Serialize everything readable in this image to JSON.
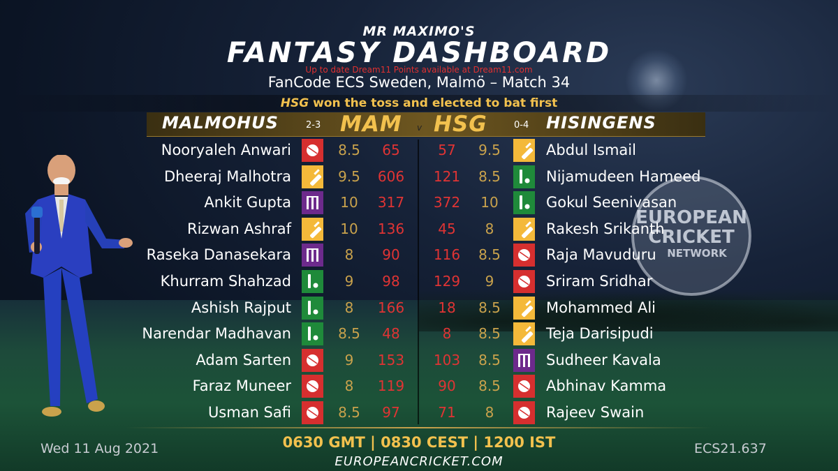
{
  "header": {
    "brand": "MR MAXIMO'S",
    "title": "FANTASY DASHBOARD",
    "note": "Up to date Dream11 Points available at Dream11.com",
    "match": "FanCode ECS Sweden, Malmö – Match 34",
    "toss_team": "HSG",
    "toss_text": " won the toss and elected to bat first"
  },
  "home": {
    "name": "MALMOHUS",
    "record": "2-3",
    "abbr": "MAM"
  },
  "away": {
    "name": "HISINGENS",
    "record": "0-4",
    "abbr": "HSG"
  },
  "vs": "v",
  "role_colors": {
    "bat": "#f4b93a",
    "bowl": "#d62f2f",
    "allrounder": "#1f8a3a",
    "keeper": "#6d2a8c"
  },
  "home_players": [
    {
      "name": "Nooryaleh Anwari",
      "role": "bowl",
      "credits": "8.5",
      "points": "65"
    },
    {
      "name": "Dheeraj Malhotra",
      "role": "bat",
      "credits": "9.5",
      "points": "606"
    },
    {
      "name": "Ankit Gupta",
      "role": "keeper",
      "credits": "10",
      "points": "317"
    },
    {
      "name": "Rizwan Ashraf",
      "role": "bat",
      "credits": "10",
      "points": "136"
    },
    {
      "name": "Raseka Danasekara",
      "role": "keeper",
      "credits": "8",
      "points": "90"
    },
    {
      "name": "Khurram Shahzad",
      "role": "allrounder",
      "credits": "9",
      "points": "98"
    },
    {
      "name": "Ashish Rajput",
      "role": "allrounder",
      "credits": "8",
      "points": "166"
    },
    {
      "name": "Narendar Madhavan",
      "role": "allrounder",
      "credits": "8.5",
      "points": "48"
    },
    {
      "name": "Adam Sarten",
      "role": "bowl",
      "credits": "9",
      "points": "153"
    },
    {
      "name": "Faraz Muneer",
      "role": "bowl",
      "credits": "8",
      "points": "119"
    },
    {
      "name": "Usman Safi",
      "role": "bowl",
      "credits": "8.5",
      "points": "97"
    }
  ],
  "away_players": [
    {
      "name": "Abdul Ismail",
      "role": "bat",
      "credits": "9.5",
      "points": "57"
    },
    {
      "name": "Nijamudeen Hameed",
      "role": "allrounder",
      "credits": "8.5",
      "points": "121"
    },
    {
      "name": "Gokul Seenivasan",
      "role": "allrounder",
      "credits": "10",
      "points": "372"
    },
    {
      "name": "Rakesh Srikanth",
      "role": "bat",
      "credits": "8",
      "points": "45"
    },
    {
      "name": "Raja Mavuduru",
      "role": "bowl",
      "credits": "8.5",
      "points": "116"
    },
    {
      "name": "Sriram Sridhar",
      "role": "bowl",
      "credits": "9",
      "points": "129"
    },
    {
      "name": "Mohammed Ali",
      "role": "bat",
      "credits": "8.5",
      "points": "18"
    },
    {
      "name": "Teja Darisipudi",
      "role": "bat",
      "credits": "8.5",
      "points": "8"
    },
    {
      "name": "Sudheer Kavala",
      "role": "keeper",
      "credits": "8.5",
      "points": "103"
    },
    {
      "name": "Abhinav Kamma",
      "role": "bowl",
      "credits": "8.5",
      "points": "90"
    },
    {
      "name": "Rajeev Swain",
      "role": "bowl",
      "credits": "8",
      "points": "71"
    }
  ],
  "footer": {
    "date": "Wed 11 Aug 2021",
    "times": "0630 GMT | 0830 CEST | 1200 IST",
    "website": "EUROPEANCRICKET.COM",
    "code": "ECS21.637"
  },
  "logo": {
    "line1": "EUROPEAN",
    "line2": "CRICKET",
    "line3": "NETWORK"
  }
}
